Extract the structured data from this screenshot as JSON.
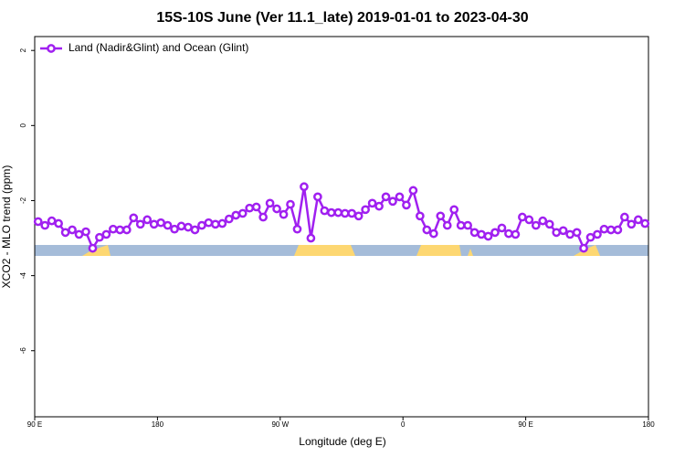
{
  "chart_data": {
    "type": "line",
    "title": "15S-10S June (Ver 11.1_late)   2019-01-01 to 2023-04-30",
    "xlabel": "Longitude (deg E)",
    "ylabel": "XCO2 - MLO trend (ppm)",
    "xlim": [
      90,
      540
    ],
    "ylim": [
      -7.76,
      2.37
    ],
    "xticks": [
      {
        "value": 90,
        "label": "90 E"
      },
      180,
      {
        "value": 270,
        "label": "90 W"
      },
      {
        "value": 360,
        "label": "0"
      },
      {
        "value": 450,
        "label": "90 E"
      },
      {
        "value": 540,
        "label": "180"
      }
    ],
    "yticks": [
      -6,
      -4,
      -2,
      0,
      2
    ],
    "legend": "top-left",
    "series": [
      {
        "name": "Land (Nadir&Glint) and Ocean (Glint)",
        "color": "#a020f0",
        "x": [
          92.5,
          97.5,
          102.5,
          107.5,
          112.5,
          117.5,
          122.5,
          127.5,
          132.5,
          137.5,
          142.5,
          147.5,
          152.5,
          157.5,
          162.5,
          167.5,
          172.5,
          177.5,
          182.5,
          187.5,
          192.5,
          197.5,
          202.5,
          207.5,
          212.5,
          217.5,
          222.5,
          227.5,
          232.5,
          237.5,
          242.5,
          247.5,
          252.5,
          257.5,
          262.5,
          267.5,
          272.5,
          277.5,
          282.5,
          287.5,
          292.5,
          297.5,
          302.5,
          307.5,
          312.5,
          317.5,
          322.5,
          327.5,
          332.5,
          337.5,
          342.5,
          347.5,
          352.5,
          357.5,
          362.5,
          367.5,
          372.5,
          377.5,
          382.5,
          387.5,
          392.5,
          397.5,
          402.5,
          407.5,
          412.5,
          417.5,
          422.5,
          427.5,
          432.5,
          437.5,
          442.5,
          447.5,
          452.5,
          457.5,
          462.5,
          467.5,
          472.5,
          477.5,
          482.5,
          487.5,
          492.5,
          497.5,
          502.5,
          507.5,
          512.5,
          517.5,
          522.5,
          527.5,
          532.5,
          537.5
        ],
        "values": [
          -2.56,
          -2.66,
          -2.54,
          -2.61,
          -2.85,
          -2.78,
          -2.9,
          -2.83,
          -3.27,
          -2.98,
          -2.9,
          -2.76,
          -2.78,
          -2.78,
          -2.46,
          -2.63,
          -2.51,
          -2.63,
          -2.59,
          -2.66,
          -2.76,
          -2.68,
          -2.71,
          -2.78,
          -2.66,
          -2.59,
          -2.63,
          -2.61,
          -2.49,
          -2.39,
          -2.34,
          -2.2,
          -2.17,
          -2.44,
          -2.07,
          -2.22,
          -2.37,
          -2.1,
          -2.76,
          -1.63,
          -3.0,
          -1.9,
          -2.27,
          -2.32,
          -2.32,
          -2.34,
          -2.34,
          -2.41,
          -2.24,
          -2.07,
          -2.15,
          -1.9,
          -2.02,
          -1.9,
          -2.12,
          -1.73,
          -2.41,
          -2.78,
          -2.88,
          -2.41,
          -2.66,
          -2.24,
          -2.66,
          -2.66,
          -2.85,
          -2.9,
          -2.95,
          -2.85,
          -2.73,
          -2.88,
          -2.9,
          -2.44,
          -2.51,
          -2.66,
          -2.54,
          -2.63,
          -2.85,
          -2.8,
          -2.9,
          -2.85,
          -3.27,
          -2.98,
          -2.9,
          -2.76,
          -2.78,
          -2.78,
          -2.44,
          -2.63,
          -2.51,
          -2.61
        ]
      }
    ]
  }
}
